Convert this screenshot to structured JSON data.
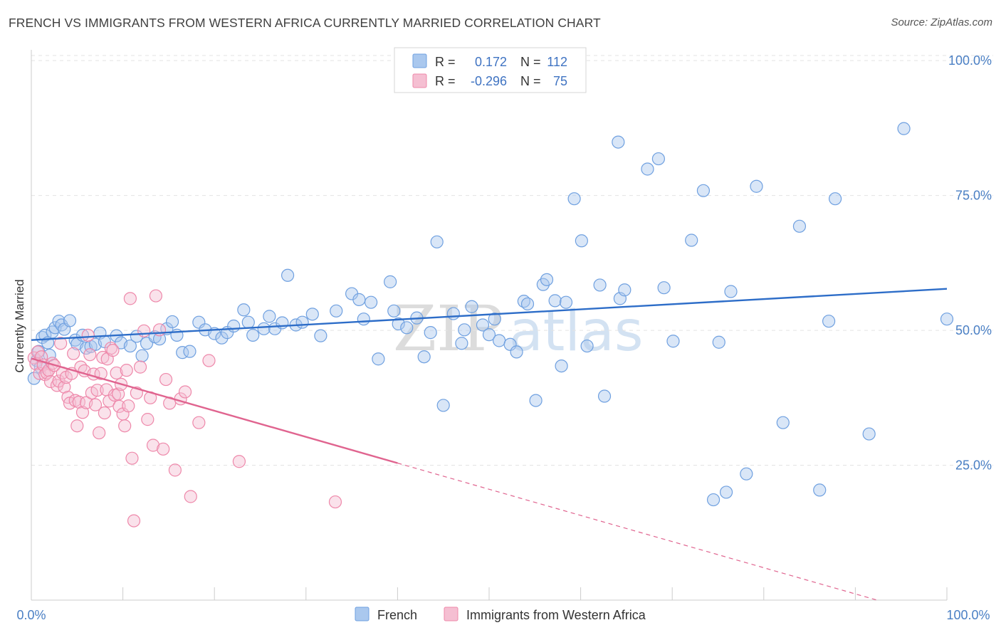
{
  "title": "FRENCH VS IMMIGRANTS FROM WESTERN AFRICA CURRENTLY MARRIED CORRELATION CHART",
  "source": "Source: ZipAtlas.com",
  "colors": {
    "blue": "#6fa0e0",
    "blue_fill": "#aac8ee",
    "blue_line": "#2d6dc8",
    "pink": "#ee88aa",
    "pink_fill": "#f5bfd2",
    "pink_line": "#e0648f",
    "axis_text": "#4a7fc4"
  },
  "stats": [
    {
      "r_label": "R =",
      "r_value": "0.172",
      "n_label": "N =",
      "n_value": "112"
    },
    {
      "r_label": "R =",
      "r_value": "-0.296",
      "n_label": "N =",
      "n_value": "75"
    }
  ],
  "watermark": {
    "part1": "ZIP",
    "part2": "atlas"
  },
  "chart_data": {
    "type": "scatter",
    "title": "FRENCH VS IMMIGRANTS FROM WESTERN AFRICA CURRENTLY MARRIED CORRELATION CHART",
    "xlabel": "",
    "ylabel": "Currently Married",
    "xlim": [
      0,
      100
    ],
    "ylim": [
      0,
      102
    ],
    "x_tick_labels": [
      "0.0%",
      "100.0%"
    ],
    "y_ticks": [
      25,
      50,
      75,
      100
    ],
    "y_tick_labels": [
      "25.0%",
      "50.0%",
      "75.0%",
      "100.0%"
    ],
    "grid": true,
    "legend_position": "bottom-center",
    "series": [
      {
        "name": "French",
        "color": "#6fa0e0",
        "r": 0.172,
        "n": 112,
        "trend": {
          "x": [
            0,
            100
          ],
          "y": [
            48.2,
            57.7
          ]
        },
        "points": [
          [
            0.3,
            41.1
          ],
          [
            0.6,
            44.4
          ],
          [
            0.8,
            46.1
          ],
          [
            1.0,
            43.2
          ],
          [
            1.2,
            48.7
          ],
          [
            1.5,
            49.1
          ],
          [
            1.8,
            47.7
          ],
          [
            2.0,
            45.4
          ],
          [
            2.3,
            49.7
          ],
          [
            2.6,
            50.5
          ],
          [
            3.0,
            51.7
          ],
          [
            3.3,
            51.0
          ],
          [
            3.6,
            50.2
          ],
          [
            4.2,
            51.8
          ],
          [
            4.8,
            48.2
          ],
          [
            5.0,
            47.5
          ],
          [
            5.6,
            49.1
          ],
          [
            6.0,
            46.7
          ],
          [
            6.5,
            47.0
          ],
          [
            7.0,
            47.4
          ],
          [
            7.5,
            49.5
          ],
          [
            8.0,
            47.9
          ],
          [
            9.3,
            49.0
          ],
          [
            9.8,
            47.7
          ],
          [
            10.8,
            47.1
          ],
          [
            11.5,
            48.9
          ],
          [
            12.1,
            45.3
          ],
          [
            12.6,
            47.6
          ],
          [
            13.5,
            48.8
          ],
          [
            14.0,
            48.4
          ],
          [
            14.8,
            50.3
          ],
          [
            15.4,
            51.6
          ],
          [
            15.9,
            49.1
          ],
          [
            16.5,
            45.9
          ],
          [
            17.3,
            46.1
          ],
          [
            18.3,
            51.5
          ],
          [
            19.0,
            50.1
          ],
          [
            20.0,
            49.4
          ],
          [
            20.8,
            48.6
          ],
          [
            21.4,
            49.6
          ],
          [
            22.1,
            50.8
          ],
          [
            23.2,
            53.8
          ],
          [
            23.7,
            51.5
          ],
          [
            24.2,
            49.1
          ],
          [
            25.4,
            50.3
          ],
          [
            26.0,
            52.6
          ],
          [
            26.6,
            50.3
          ],
          [
            27.4,
            51.4
          ],
          [
            28.0,
            60.2
          ],
          [
            28.9,
            51.0
          ],
          [
            29.6,
            51.5
          ],
          [
            30.7,
            53.0
          ],
          [
            31.6,
            49.0
          ],
          [
            33.3,
            53.6
          ],
          [
            35.0,
            56.8
          ],
          [
            35.8,
            55.7
          ],
          [
            36.3,
            52.1
          ],
          [
            37.1,
            55.2
          ],
          [
            37.9,
            44.7
          ],
          [
            39.2,
            59.0
          ],
          [
            39.6,
            53.6
          ],
          [
            40.1,
            51.2
          ],
          [
            41.0,
            50.5
          ],
          [
            42.1,
            52.3
          ],
          [
            42.9,
            45.1
          ],
          [
            43.6,
            49.6
          ],
          [
            44.3,
            66.4
          ],
          [
            45.0,
            36.1
          ],
          [
            46.1,
            53.1
          ],
          [
            47.0,
            47.6
          ],
          [
            47.3,
            50.1
          ],
          [
            48.1,
            54.4
          ],
          [
            49.3,
            51.0
          ],
          [
            50.0,
            49.2
          ],
          [
            50.6,
            52.1
          ],
          [
            51.1,
            48.1
          ],
          [
            52.3,
            47.4
          ],
          [
            53.0,
            46.0
          ],
          [
            53.8,
            55.4
          ],
          [
            54.2,
            54.9
          ],
          [
            55.1,
            37.0
          ],
          [
            55.9,
            58.5
          ],
          [
            56.3,
            59.4
          ],
          [
            57.2,
            55.5
          ],
          [
            57.9,
            43.4
          ],
          [
            58.4,
            55.2
          ],
          [
            59.3,
            74.4
          ],
          [
            60.1,
            66.6
          ],
          [
            60.7,
            47.1
          ],
          [
            62.1,
            58.4
          ],
          [
            62.6,
            37.8
          ],
          [
            64.1,
            84.9
          ],
          [
            64.3,
            55.9
          ],
          [
            64.8,
            57.5
          ],
          [
            67.3,
            79.9
          ],
          [
            68.5,
            81.8
          ],
          [
            69.1,
            57.9
          ],
          [
            70.1,
            48.0
          ],
          [
            72.1,
            66.7
          ],
          [
            73.4,
            75.9
          ],
          [
            74.5,
            18.6
          ],
          [
            75.1,
            47.8
          ],
          [
            75.9,
            20.0
          ],
          [
            76.4,
            57.2
          ],
          [
            78.1,
            23.4
          ],
          [
            79.2,
            76.7
          ],
          [
            82.1,
            32.9
          ],
          [
            83.9,
            69.3
          ],
          [
            86.1,
            20.4
          ],
          [
            87.1,
            51.7
          ],
          [
            87.8,
            74.4
          ],
          [
            91.5,
            30.8
          ],
          [
            95.3,
            87.4
          ],
          [
            100.0,
            52.1
          ]
        ]
      },
      {
        "name": "Immigrants from Western Africa",
        "color": "#ee88aa",
        "r": -0.296,
        "n": 75,
        "trend": {
          "x": [
            0,
            40
          ],
          "y": [
            44.8,
            25.4
          ]
        },
        "trend_extended": {
          "x": [
            40,
            100
          ],
          "y": [
            25.4,
            -3.7
          ]
        },
        "points": [
          [
            0.3,
            44.9
          ],
          [
            0.5,
            43.8
          ],
          [
            0.7,
            46.0
          ],
          [
            0.9,
            42.0
          ],
          [
            1.1,
            45.1
          ],
          [
            1.3,
            43.6
          ],
          [
            1.5,
            41.8
          ],
          [
            1.7,
            42.1
          ],
          [
            1.9,
            42.6
          ],
          [
            2.1,
            40.5
          ],
          [
            2.3,
            43.9
          ],
          [
            2.5,
            43.5
          ],
          [
            2.8,
            39.8
          ],
          [
            3.0,
            40.6
          ],
          [
            3.2,
            47.6
          ],
          [
            3.4,
            42.1
          ],
          [
            3.6,
            39.5
          ],
          [
            3.8,
            41.3
          ],
          [
            4.0,
            37.6
          ],
          [
            4.2,
            36.5
          ],
          [
            4.4,
            42.0
          ],
          [
            4.6,
            45.7
          ],
          [
            4.8,
            37.0
          ],
          [
            5.0,
            32.3
          ],
          [
            5.2,
            36.7
          ],
          [
            5.4,
            43.2
          ],
          [
            5.6,
            34.8
          ],
          [
            5.8,
            42.5
          ],
          [
            6.0,
            36.6
          ],
          [
            6.2,
            49.1
          ],
          [
            6.4,
            45.5
          ],
          [
            6.6,
            38.4
          ],
          [
            6.8,
            41.9
          ],
          [
            7.0,
            36.2
          ],
          [
            7.2,
            38.9
          ],
          [
            7.4,
            31.0
          ],
          [
            7.6,
            42.0
          ],
          [
            7.8,
            45.0
          ],
          [
            8.0,
            34.7
          ],
          [
            8.2,
            39.0
          ],
          [
            8.3,
            44.7
          ],
          [
            8.5,
            36.9
          ],
          [
            8.7,
            46.7
          ],
          [
            8.9,
            46.3
          ],
          [
            9.1,
            38.0
          ],
          [
            9.3,
            42.1
          ],
          [
            9.5,
            38.2
          ],
          [
            9.6,
            35.9
          ],
          [
            9.8,
            40.0
          ],
          [
            10.0,
            34.5
          ],
          [
            10.2,
            32.3
          ],
          [
            10.4,
            42.6
          ],
          [
            10.6,
            36.0
          ],
          [
            10.8,
            55.9
          ],
          [
            11.0,
            26.3
          ],
          [
            11.2,
            14.7
          ],
          [
            11.5,
            38.4
          ],
          [
            11.9,
            43.2
          ],
          [
            12.3,
            49.9
          ],
          [
            12.7,
            33.5
          ],
          [
            13.0,
            37.5
          ],
          [
            13.3,
            28.7
          ],
          [
            13.6,
            56.4
          ],
          [
            14.0,
            50.1
          ],
          [
            14.4,
            28.0
          ],
          [
            14.7,
            40.9
          ],
          [
            15.1,
            36.5
          ],
          [
            15.7,
            24.1
          ],
          [
            16.3,
            37.3
          ],
          [
            16.8,
            38.6
          ],
          [
            17.4,
            19.2
          ],
          [
            18.3,
            32.9
          ],
          [
            19.4,
            44.4
          ],
          [
            22.7,
            25.7
          ],
          [
            33.2,
            18.2
          ]
        ]
      }
    ]
  }
}
